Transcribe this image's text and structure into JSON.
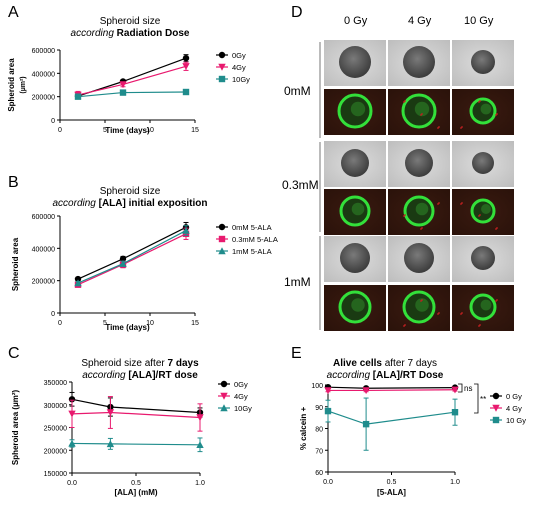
{
  "panels": {
    "A": {
      "letter": "A",
      "title_line1": "Spheroid size",
      "title_line2_italic": "according",
      "title_line2_bold": "Radiation Dose",
      "chart_data": {
        "type": "line",
        "x": [
          2,
          7,
          14
        ],
        "xlabel": "Time (days)",
        "ylabel": "Spheroid area",
        "ylabel_unit": "(µm²)",
        "xlim": [
          0,
          15
        ],
        "xticks": [
          "0",
          "5",
          "10",
          "15"
        ],
        "ylim": [
          0,
          600000
        ],
        "yticks": [
          "0",
          "200000",
          "400000",
          "600000"
        ],
        "series": [
          {
            "name": "0Gy",
            "values": [
              205000,
              330000,
              530000
            ],
            "err": [
              15000,
              15000,
              30000
            ],
            "color": "#000000",
            "marker": "circle"
          },
          {
            "name": "4Gy",
            "values": [
              215000,
              305000,
              460000
            ],
            "err": [
              30000,
              20000,
              35000
            ],
            "color": "#e8196e",
            "marker": "triangle-down"
          },
          {
            "name": "10Gy",
            "values": [
              200000,
              235000,
              240000
            ],
            "err": [
              10000,
              10000,
              20000
            ],
            "color": "#1f8c8c",
            "marker": "square"
          }
        ],
        "legend": "right"
      }
    },
    "B": {
      "letter": "B",
      "title_line1": "Spheroid size",
      "title_line2_italic": "according",
      "title_line2_bold": "[ALA] initial exposition",
      "chart_data": {
        "type": "line",
        "x": [
          2,
          7,
          14
        ],
        "xlabel": "Time (days)",
        "ylabel": "Spheroid area",
        "xlim": [
          0,
          15
        ],
        "xticks": [
          "0",
          "5",
          "10",
          "15"
        ],
        "ylim": [
          0,
          600000
        ],
        "yticks": [
          "0",
          "200000",
          "400000",
          "600000"
        ],
        "series": [
          {
            "name": "0mM 5-ALA",
            "values": [
              210000,
              335000,
              530000
            ],
            "err": [
              8000,
              15000,
              30000
            ],
            "color": "#000000",
            "marker": "circle"
          },
          {
            "name": "0.3mM 5-ALA",
            "values": [
              175000,
              300000,
              490000
            ],
            "err": [
              10000,
              20000,
              35000
            ],
            "color": "#e8196e",
            "marker": "square"
          },
          {
            "name": "1mM 5-ALA",
            "values": [
              185000,
              305000,
              510000
            ],
            "err": [
              10000,
              15000,
              30000
            ],
            "color": "#1f8c8c",
            "marker": "triangle-up"
          }
        ],
        "legend": "right"
      }
    },
    "C": {
      "letter": "C",
      "title_line1_plain": "Spheroid size after",
      "title_line1_bold": "7 days",
      "title_line2_italic": "according",
      "title_line2_bold": "[ALA]/RT dose",
      "chart_data": {
        "type": "line",
        "x": [
          0,
          0.3,
          1.0
        ],
        "xlabel": "[ALA] (mM)",
        "ylabel": "Spheroid area (µm²)",
        "xlim": [
          0,
          1.0
        ],
        "xticks": [
          "0.0",
          "0.5",
          "1.0"
        ],
        "ylim": [
          150000,
          350000
        ],
        "yticks": [
          "150000",
          "200000",
          "250000",
          "300000",
          "350000"
        ],
        "series": [
          {
            "name": "0Gy",
            "values": [
              312000,
              295000,
              283000
            ],
            "err": [
              15000,
              20000,
              10000
            ],
            "color": "#000000",
            "marker": "circle"
          },
          {
            "name": "4Gy",
            "values": [
              280000,
              283000,
              272000
            ],
            "err": [
              30000,
              35000,
              30000
            ],
            "color": "#e8196e",
            "marker": "triangle-down"
          },
          {
            "name": "10Gy",
            "values": [
              215000,
              214000,
              212000
            ],
            "err": [
              8000,
              12000,
              15000
            ],
            "color": "#1f8c8c",
            "marker": "triangle-up"
          }
        ],
        "legend": "right"
      }
    },
    "D": {
      "letter": "D",
      "columns": [
        "0 Gy",
        "4 Gy",
        "10 Gy"
      ],
      "rows": [
        "0mM",
        "0.3mM",
        "1mM"
      ]
    },
    "E": {
      "letter": "E",
      "title_line1_bold": "Alive cells",
      "title_line1_plain": "after 7 days",
      "title_line2_italic": "according",
      "title_line2_bold": "[ALA]/RT Dose",
      "sig_ns": "ns",
      "sig_star": "**",
      "chart_data": {
        "type": "line",
        "x": [
          0,
          0.3,
          1.0
        ],
        "xlabel": "[5-ALA]",
        "ylabel": "% calcein +",
        "xlim": [
          0,
          1.0
        ],
        "xticks": [
          "0.0",
          "0.5",
          "1.0"
        ],
        "ylim": [
          60,
          100
        ],
        "yticks": [
          "60",
          "70",
          "80",
          "90",
          "100"
        ],
        "series": [
          {
            "name": "0 Gy",
            "values": [
              99,
              98.5,
              98.8
            ],
            "err": [
              0.5,
              0.5,
              0.5
            ],
            "color": "#000000",
            "marker": "circle"
          },
          {
            "name": "4 Gy",
            "values": [
              97.5,
              97.5,
              97.8
            ],
            "err": [
              0.6,
              0.6,
              0.6
            ],
            "color": "#e8196e",
            "marker": "triangle-down"
          },
          {
            "name": "10 Gy",
            "values": [
              88,
              82,
              87.5
            ],
            "err": [
              5,
              12,
              6
            ],
            "color": "#1f8c8c",
            "marker": "square"
          }
        ],
        "legend": "right"
      }
    }
  }
}
